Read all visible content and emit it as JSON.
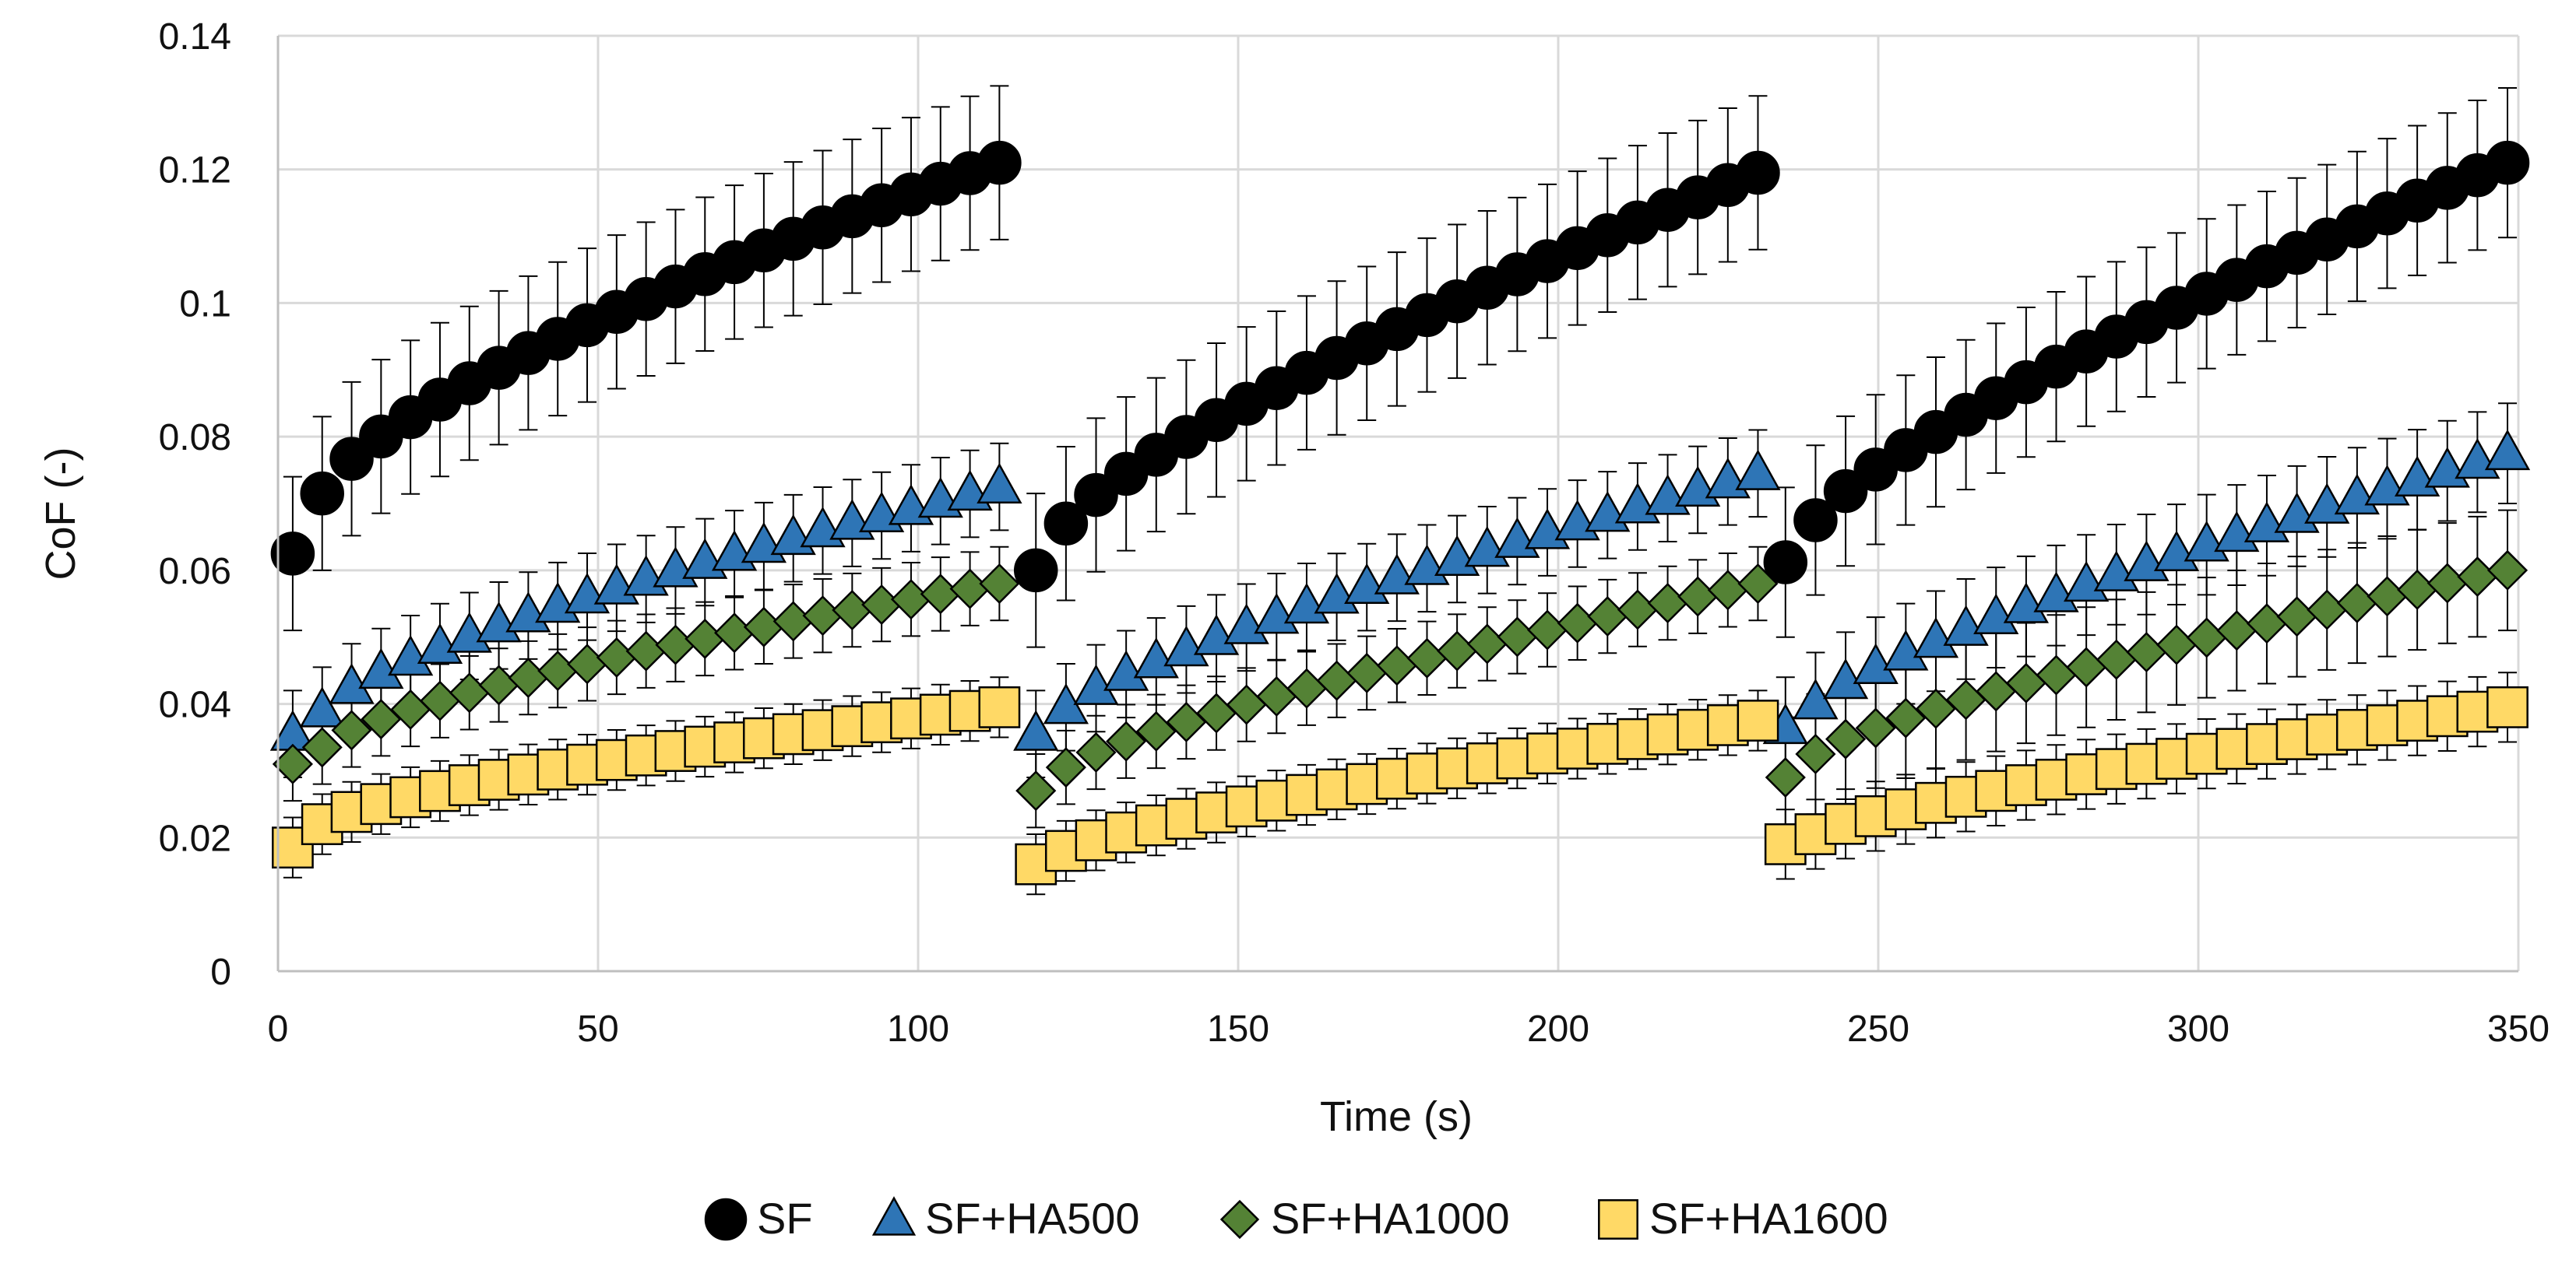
{
  "chart_data": {
    "type": "scatter",
    "title": "",
    "xlabel": "Time (s)",
    "ylabel": "CoF (-)",
    "xlim": [
      0,
      350
    ],
    "ylim": [
      0,
      0.14
    ],
    "xticks": [
      0,
      50,
      100,
      150,
      200,
      250,
      300,
      350
    ],
    "yticks": [
      0,
      0.02,
      0.04,
      0.06,
      0.08,
      0.1,
      0.12,
      0.14
    ],
    "x_tick_labels": [
      "0",
      "50",
      "100",
      "150",
      "200",
      "250",
      "300",
      "350"
    ],
    "y_tick_labels": [
      "0",
      "0.02",
      "0.04",
      "0.06",
      "0.08",
      "0.1",
      "0.12",
      "0.14"
    ],
    "grid": true,
    "legend_position": "bottom",
    "segments": [
      {
        "start": 2.3,
        "step": 4.6,
        "count": 25
      },
      {
        "start": 118.4,
        "step": 4.7,
        "count": 25
      },
      {
        "start": 235.5,
        "step": 4.7,
        "count": 25
      }
    ],
    "series": [
      {
        "name": "SF",
        "marker": "circle",
        "color": "#000000",
        "segments": [
          {
            "start_value": 0.0625,
            "second_value": 0.0715,
            "end_value": 0.121,
            "exponent": 0.72,
            "error": 0.0115
          },
          {
            "start_value": 0.06,
            "second_value": 0.067,
            "end_value": 0.1195,
            "exponent": 0.8,
            "error": 0.0115
          },
          {
            "start_value": 0.0612,
            "second_value": 0.0675,
            "end_value": 0.121,
            "exponent": 0.8,
            "error": 0.0112
          }
        ]
      },
      {
        "name": "SF+HA500",
        "marker": "triangle",
        "color": "#2E75B6",
        "segments": [
          {
            "start_value": 0.0355,
            "second_value": 0.039,
            "end_value": 0.0725,
            "exponent": 0.72,
            "error": 0.0065
          },
          {
            "start_value": 0.0355,
            "second_value": 0.0395,
            "end_value": 0.0745,
            "exponent": 0.8,
            "error": 0.0065
          },
          {
            "start_value": 0.0365,
            "second_value": 0.0402,
            "end_value": 0.0775,
            "exponent": 0.8,
            "error": 0.0075
          }
        ]
      },
      {
        "name": "SF+HA1000",
        "marker": "diamond",
        "color": "#548235",
        "segments": [
          {
            "start_value": 0.031,
            "second_value": 0.0335,
            "end_value": 0.058,
            "exponent": 0.72,
            "error": 0.0055
          },
          {
            "start_value": 0.027,
            "second_value": 0.0305,
            "end_value": 0.058,
            "exponent": 0.8,
            "error": 0.0055
          },
          {
            "start_value": 0.029,
            "second_value": 0.0325,
            "end_value": 0.06,
            "exponent": 0.8,
            "error": 0.009
          }
        ]
      },
      {
        "name": "SF+HA1600",
        "marker": "square",
        "color": "#FFD966",
        "segments": [
          {
            "start_value": 0.0185,
            "second_value": 0.022,
            "end_value": 0.0395,
            "exponent": 0.72,
            "error": 0.0045
          },
          {
            "start_value": 0.016,
            "second_value": 0.018,
            "end_value": 0.0375,
            "exponent": 0.8,
            "error": 0.0045
          },
          {
            "start_value": 0.019,
            "second_value": 0.0205,
            "end_value": 0.0395,
            "exponent": 0.8,
            "error": 0.0052
          }
        ]
      }
    ]
  }
}
